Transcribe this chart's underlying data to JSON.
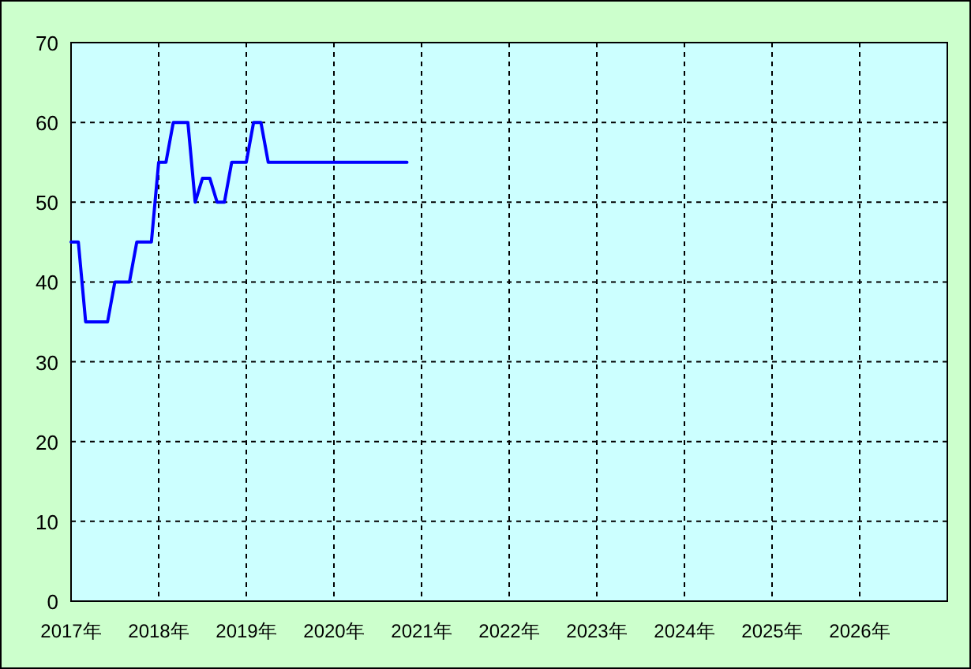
{
  "chart_data": {
    "type": "line",
    "x": [
      "2017-01",
      "2017-02",
      "2017-03",
      "2017-04",
      "2017-05",
      "2017-06",
      "2017-07",
      "2017-08",
      "2017-09",
      "2017-10",
      "2017-11",
      "2017-12",
      "2018-01",
      "2018-02",
      "2018-03",
      "2018-04",
      "2018-05",
      "2018-06",
      "2018-07",
      "2018-08",
      "2018-09",
      "2018-10",
      "2018-11",
      "2018-12",
      "2019-01",
      "2019-02",
      "2019-03",
      "2019-04",
      "2019-05",
      "2019-06",
      "2019-07",
      "2019-08",
      "2019-09",
      "2019-10",
      "2019-11",
      "2019-12",
      "2020-01",
      "2020-02",
      "2020-03",
      "2020-04",
      "2020-05",
      "2020-06",
      "2020-07",
      "2020-08",
      "2020-09",
      "2020-10",
      "2020-11"
    ],
    "series": [
      {
        "color": "#0000ff",
        "values": [
          45,
          45,
          35,
          35,
          35,
          35,
          40,
          40,
          40,
          45,
          45,
          45,
          55,
          55,
          60,
          60,
          60,
          50,
          53,
          53,
          50,
          50,
          55,
          55,
          55,
          60,
          60,
          55,
          55,
          55,
          55,
          55,
          55,
          55,
          55,
          55,
          55,
          55,
          55,
          55,
          55,
          55,
          55,
          55,
          55,
          55,
          55
        ]
      }
    ],
    "xlim": [
      "2017",
      "2027"
    ],
    "xticks": [
      {
        "value": "2017",
        "label": "2017年"
      },
      {
        "value": "2018",
        "label": "2018年"
      },
      {
        "value": "2019",
        "label": "2019年"
      },
      {
        "value": "2020",
        "label": "2020年"
      },
      {
        "value": "2021",
        "label": "2021年"
      },
      {
        "value": "2022",
        "label": "2022年"
      },
      {
        "value": "2023",
        "label": "2023年"
      },
      {
        "value": "2024",
        "label": "2024年"
      },
      {
        "value": "2025",
        "label": "2025年"
      },
      {
        "value": "2026",
        "label": "2026年"
      }
    ],
    "ylim": [
      0,
      70
    ],
    "yticks": [
      0,
      10,
      20,
      30,
      40,
      50,
      60,
      70
    ],
    "grid": true,
    "marker": "none",
    "line_style": "solid"
  }
}
